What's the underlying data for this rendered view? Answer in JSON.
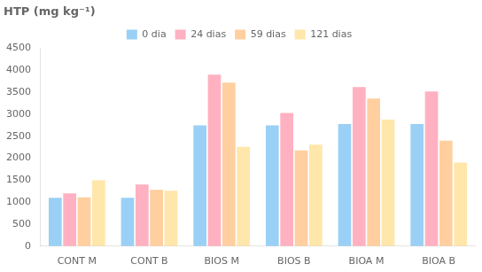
{
  "chart_data": {
    "type": "bar",
    "title": "HTP (mg kg⁻¹)",
    "categories": [
      "CONT M",
      "CONT B",
      "BIOS M",
      "BIOS B",
      "BIOA M",
      "BIOA B"
    ],
    "series": [
      {
        "name": "0 dia",
        "values": [
          1100,
          1100,
          2750,
          2750,
          2780,
          2780
        ]
      },
      {
        "name": "24 dias",
        "values": [
          1200,
          1400,
          3900,
          3030,
          3620,
          3520
        ]
      },
      {
        "name": "59 dias",
        "values": [
          1110,
          1280,
          3720,
          2180,
          3360,
          2400
        ]
      },
      {
        "name": "121 dias",
        "values": [
          1500,
          1260,
          2260,
          2310,
          2880,
          1900
        ]
      }
    ],
    "ylim": [
      0,
      4500
    ],
    "yticks": [
      0,
      500,
      1000,
      1500,
      2000,
      2500,
      3000,
      3500,
      4000,
      4500
    ],
    "grid": false,
    "legend": "top"
  }
}
